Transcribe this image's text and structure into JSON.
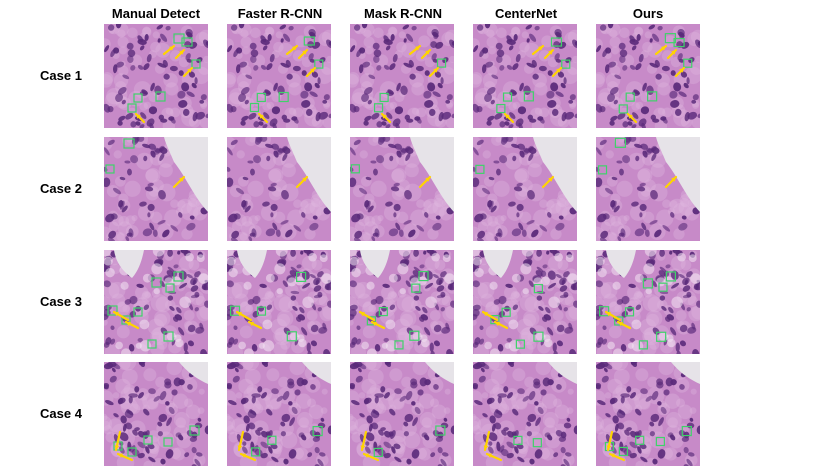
{
  "figure": {
    "columns": [
      "Manual Detect",
      "Faster R-CNN",
      "Mask R-CNN",
      "CenterNet",
      "Ours"
    ],
    "rows": [
      "Case 1",
      "Case 2",
      "Case 3",
      "Case 4"
    ]
  },
  "colors": {
    "tissue_background": "#c78ac8",
    "nucleus": "#5a2a7a",
    "blank_area": "#e6e3e8",
    "detection_box": "#3fd26a",
    "arrow": "#ffd400"
  },
  "icons": {
    "detection_marker": "green-box-icon",
    "pointer": "yellow-arrow-icon"
  }
}
